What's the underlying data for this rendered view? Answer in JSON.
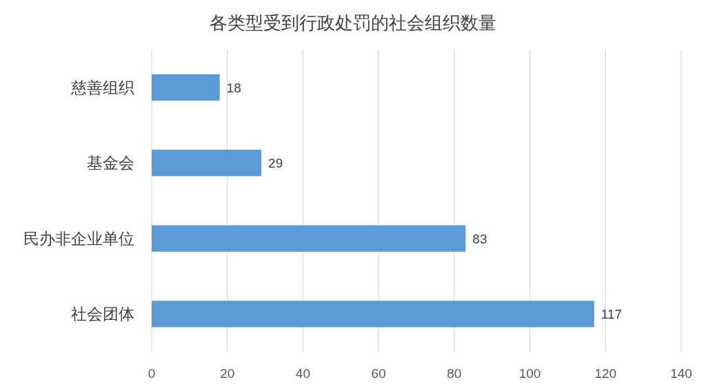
{
  "chart_data": {
    "type": "bar",
    "orientation": "horizontal",
    "title": "各类型受到行政处罚的社会组织数量",
    "categories": [
      "慈善组织",
      "基金会",
      "民办非企业单位",
      "社会团体"
    ],
    "values": [
      18,
      29,
      83,
      117
    ],
    "color": "#5b9bd5",
    "xlim": [
      0,
      140
    ],
    "xticks": [
      0,
      20,
      40,
      60,
      80,
      100,
      120,
      140
    ],
    "grid": "x",
    "data_labels": true
  }
}
